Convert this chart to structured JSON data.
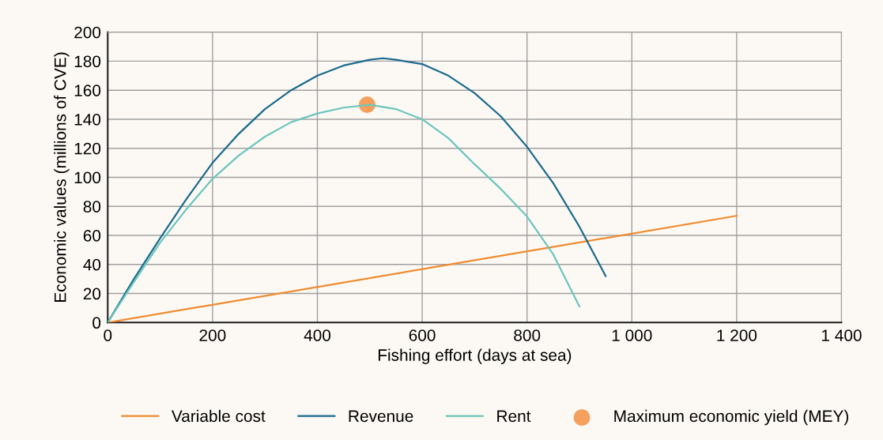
{
  "chart_data": {
    "type": "line",
    "xlabel": "Fishing effort (days at sea)",
    "ylabel": "Economic values (millions of CVE)",
    "xlim": [
      0,
      1400
    ],
    "xticks": [
      0,
      200,
      400,
      600,
      800,
      {
        "value": 1000,
        "label": "1 000"
      },
      {
        "value": 1200,
        "label": "1 200"
      },
      {
        "value": 1400,
        "label": "1 400"
      }
    ],
    "ylim": [
      0,
      200
    ],
    "yticks": [
      0,
      20,
      40,
      60,
      80,
      100,
      120,
      140,
      160,
      180,
      200
    ],
    "grid": true,
    "legend": "bottom",
    "marker": "none",
    "line_style": "solid",
    "series": [
      {
        "name": "Variable cost",
        "color": "#f08a2e",
        "x": [
          0,
          1200
        ],
        "values": [
          0,
          73.5
        ]
      },
      {
        "name": "Revenue",
        "color": "#1a6a8e",
        "x": [
          0,
          50,
          100,
          150,
          200,
          250,
          300,
          350,
          400,
          450,
          500,
          525,
          550,
          600,
          650,
          700,
          750,
          800,
          850,
          900,
          950
        ],
        "values": [
          0,
          30,
          58,
          85,
          110,
          130,
          147,
          160,
          170,
          177,
          181,
          182,
          181,
          178,
          170,
          158,
          142,
          121,
          96,
          66,
          32
        ]
      },
      {
        "name": "Rent",
        "color": "#6cc5bd",
        "x": [
          0,
          50,
          100,
          150,
          200,
          250,
          300,
          350,
          400,
          450,
          500,
          550,
          600,
          650,
          700,
          750,
          800,
          850,
          900
        ],
        "values": [
          0,
          28,
          55,
          78,
          99,
          115,
          128,
          138,
          144,
          148,
          150,
          147,
          140,
          127,
          109,
          92,
          73,
          47,
          11
        ]
      },
      {
        "name": "Maximum economic yield (MEY)",
        "type": "scatter",
        "marker": "circle",
        "color": "#f5a05f",
        "x": [
          495
        ],
        "values": [
          150
        ]
      }
    ]
  }
}
